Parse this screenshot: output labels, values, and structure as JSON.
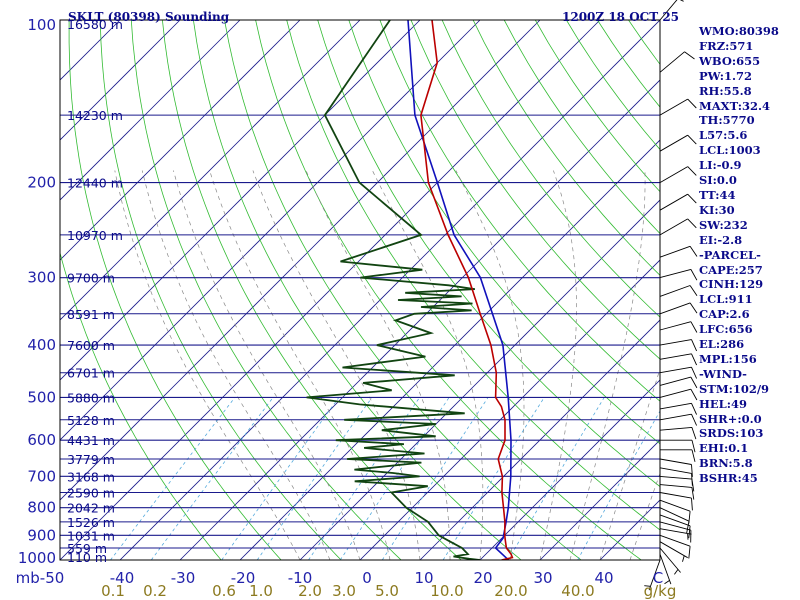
{
  "header": {
    "title": "SKLT (80398) Sounding",
    "time": "1200Z 18 OCT 25"
  },
  "indices": [
    "WMO:80398",
    "FRZ:571",
    "WBO:655",
    "PW:1.72",
    "RH:55.8",
    "MAXT:32.4",
    "TH:5770",
    "L57:5.6",
    "LCL:1003",
    "LI:-0.9",
    "SI:0.0",
    "TT:44",
    "KI:30",
    "SW:232",
    "EI:-2.8",
    "-PARCEL-",
    "CAPE:257",
    "CINH:129",
    "LCL:911",
    "CAP:2.6",
    "LFC:656",
    "EL:286",
    "MPL:156",
    "-WIND-",
    "STM:102/9",
    "HEL:49",
    "SHR+:0.0",
    "SRDS:103",
    "EHI:0.1",
    "BRN:5.8",
    "BSHR:45"
  ],
  "chart_data": {
    "type": "skew-t log-p sounding",
    "pressure_unit": "mb",
    "temperature_unit": "C",
    "mixing_ratio_unit": "g/kg",
    "pressure_range": [
      1000,
      100
    ],
    "temperature_range_at_base": [
      -50,
      50
    ],
    "pressure_ticks": [
      100,
      200,
      300,
      400,
      500,
      600,
      700,
      800,
      900,
      1000
    ],
    "temperature_ticks": [
      -50,
      -40,
      -30,
      -20,
      -10,
      0,
      10,
      20,
      30,
      40
    ],
    "temperature_tick_labels": [
      "mb-50",
      "-40",
      "-30",
      "-20",
      "-10",
      "0",
      "10",
      "20",
      "30",
      "40",
      "C"
    ],
    "mixing_ratio_labels": [
      "0.1",
      "0.2",
      "0.6",
      "1.0",
      "2.0",
      "3.0",
      "5.0",
      "10.0",
      "20.0",
      "40.0",
      "g/kg"
    ],
    "mixing_ratio_values": [
      0.1,
      0.2,
      0.6,
      1.0,
      2.0,
      3.0,
      5.0,
      10.0,
      20.0,
      40.0
    ],
    "height_levels": [
      {
        "p": 100,
        "label": "16580 m"
      },
      {
        "p": 150,
        "label": "14230 m"
      },
      {
        "p": 200,
        "label": "12440 m"
      },
      {
        "p": 250,
        "label": "10970 m"
      },
      {
        "p": 300,
        "label": "9700 m"
      },
      {
        "p": 350,
        "label": "8591 m"
      },
      {
        "p": 400,
        "label": "7600 m"
      },
      {
        "p": 450,
        "label": "6701 m"
      },
      {
        "p": 500,
        "label": "5880 m"
      },
      {
        "p": 550,
        "label": "5128 m"
      },
      {
        "p": 600,
        "label": "4431 m"
      },
      {
        "p": 650,
        "label": "3779 m"
      },
      {
        "p": 700,
        "label": "3168 m"
      },
      {
        "p": 750,
        "label": "2590 m"
      },
      {
        "p": 800,
        "label": "2042 m"
      },
      {
        "p": 850,
        "label": "1526 m"
      },
      {
        "p": 900,
        "label": "1031 m"
      },
      {
        "p": 950,
        "label": "559 m"
      },
      {
        "p": 1000,
        "label": "110 m"
      }
    ],
    "temperature": [
      [
        1000,
        23.6
      ],
      [
        990,
        25
      ],
      [
        975,
        24.2
      ],
      [
        950,
        22.4
      ],
      [
        925,
        21.2
      ],
      [
        900,
        20
      ],
      [
        850,
        17.8
      ],
      [
        800,
        15.2
      ],
      [
        750,
        12.4
      ],
      [
        700,
        9.8
      ],
      [
        650,
        6.2
      ],
      [
        600,
        4.2
      ],
      [
        550,
        0.8
      ],
      [
        520,
        -2
      ],
      [
        500,
        -4.5
      ],
      [
        450,
        -8.5
      ],
      [
        400,
        -14
      ],
      [
        350,
        -21
      ],
      [
        300,
        -29
      ],
      [
        250,
        -39.5
      ],
      [
        200,
        -51.5
      ],
      [
        150,
        -64
      ],
      [
        120,
        -70
      ],
      [
        100,
        -78
      ]
    ],
    "dewpoint": [
      [
        1000,
        20
      ],
      [
        995,
        18
      ],
      [
        985,
        15
      ],
      [
        975,
        17
      ],
      [
        950,
        15
      ],
      [
        925,
        12
      ],
      [
        900,
        9
      ],
      [
        850,
        5
      ],
      [
        800,
        -1
      ],
      [
        750,
        -6
      ],
      [
        730,
        -1
      ],
      [
        715,
        -14
      ],
      [
        700,
        -4
      ],
      [
        690,
        -9
      ],
      [
        680,
        -16
      ],
      [
        660,
        -6
      ],
      [
        650,
        -19
      ],
      [
        635,
        -7
      ],
      [
        620,
        -18
      ],
      [
        610,
        -12
      ],
      [
        600,
        -24
      ],
      [
        590,
        -8
      ],
      [
        575,
        -18
      ],
      [
        560,
        -10
      ],
      [
        550,
        -26
      ],
      [
        535,
        -7
      ],
      [
        515,
        -26
      ],
      [
        500,
        -36
      ],
      [
        485,
        -23
      ],
      [
        470,
        -29
      ],
      [
        455,
        -15
      ],
      [
        440,
        -35
      ],
      [
        420,
        -23
      ],
      [
        400,
        -33
      ],
      [
        380,
        -26
      ],
      [
        360,
        -34
      ],
      [
        350,
        -32
      ],
      [
        345,
        -23
      ],
      [
        340,
        -32
      ],
      [
        335,
        -24
      ],
      [
        330,
        -37
      ],
      [
        325,
        -27
      ],
      [
        320,
        -37
      ],
      [
        315,
        -26
      ],
      [
        310,
        -31
      ],
      [
        300,
        -47
      ],
      [
        290,
        -38
      ],
      [
        280,
        -53
      ],
      [
        250,
        -44
      ],
      [
        200,
        -63
      ],
      [
        150,
        -80
      ],
      [
        100,
        -85
      ]
    ],
    "parcel": [
      [
        1003,
        25
      ],
      [
        950,
        20.6
      ],
      [
        911,
        20.2
      ],
      [
        850,
        18
      ],
      [
        800,
        16
      ],
      [
        700,
        11.2
      ],
      [
        600,
        5.2
      ],
      [
        500,
        -2.4
      ],
      [
        400,
        -12
      ],
      [
        300,
        -27
      ],
      [
        250,
        -38.5
      ],
      [
        200,
        -50
      ],
      [
        150,
        -65
      ],
      [
        100,
        -82
      ]
    ],
    "wind_barbs": [
      [
        1000,
        200,
        5
      ],
      [
        975,
        160,
        5
      ],
      [
        950,
        140,
        5
      ],
      [
        925,
        120,
        5
      ],
      [
        900,
        110,
        10
      ],
      [
        875,
        100,
        5
      ],
      [
        850,
        105,
        10
      ],
      [
        825,
        110,
        10
      ],
      [
        800,
        115,
        10
      ],
      [
        775,
        110,
        10
      ],
      [
        750,
        100,
        10
      ],
      [
        725,
        95,
        10
      ],
      [
        700,
        95,
        10
      ],
      [
        675,
        100,
        10
      ],
      [
        650,
        100,
        10
      ],
      [
        625,
        90,
        10
      ],
      [
        600,
        90,
        10
      ],
      [
        575,
        85,
        10
      ],
      [
        550,
        80,
        10
      ],
      [
        525,
        80,
        10
      ],
      [
        500,
        75,
        10
      ],
      [
        475,
        75,
        10
      ],
      [
        450,
        80,
        10
      ],
      [
        425,
        80,
        10
      ],
      [
        400,
        80,
        10
      ],
      [
        375,
        75,
        10
      ],
      [
        350,
        70,
        10
      ],
      [
        325,
        70,
        10
      ],
      [
        300,
        75,
        10
      ],
      [
        275,
        70,
        10
      ],
      [
        250,
        60,
        10
      ],
      [
        225,
        60,
        10
      ],
      [
        200,
        60,
        10
      ],
      [
        175,
        60,
        10
      ],
      [
        150,
        60,
        10
      ],
      [
        125,
        50,
        10
      ],
      [
        100,
        40,
        5
      ]
    ]
  }
}
